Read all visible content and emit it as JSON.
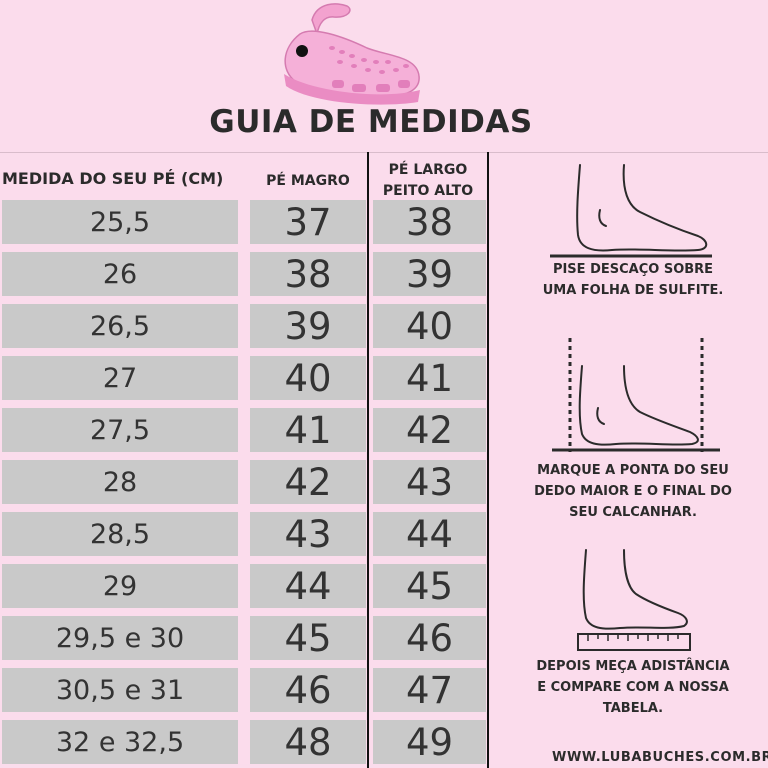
{
  "title": "GUIA DE MEDIDAS",
  "headers": {
    "foot_size": "MEDIDA DO SEU PÉ (CM)",
    "narrow": "PÉ MAGRO",
    "wide_line1": "PÉ LARGO",
    "wide_line2": "PEITO ALTO"
  },
  "rows": [
    {
      "cm": "25,5",
      "narrow": "37",
      "wide": "38"
    },
    {
      "cm": "26",
      "narrow": "38",
      "wide": "39"
    },
    {
      "cm": "26,5",
      "narrow": "39",
      "wide": "40"
    },
    {
      "cm": "27",
      "narrow": "40",
      "wide": "41"
    },
    {
      "cm": "27,5",
      "narrow": "41",
      "wide": "42"
    },
    {
      "cm": "28",
      "narrow": "42",
      "wide": "43"
    },
    {
      "cm": "28,5",
      "narrow": "43",
      "wide": "44"
    },
    {
      "cm": "29",
      "narrow": "44",
      "wide": "45"
    },
    {
      "cm": "29,5 e 30",
      "narrow": "45",
      "wide": "46"
    },
    {
      "cm": "30,5 e 31",
      "narrow": "46",
      "wide": "47"
    },
    {
      "cm": "32 e 32,5",
      "narrow": "48",
      "wide": "49"
    }
  ],
  "steps": [
    {
      "line1": "PISE DESCAÇO SOBRE",
      "line2": "UMA FOLHA DE SULFITE.",
      "line3": ""
    },
    {
      "line1": "MARQUE A PONTA DO SEU",
      "line2": "DEDO MAIOR E O FINAL DO",
      "line3": "SEU CALCANHAR."
    },
    {
      "line1": "DEPOIS MEÇA ADISTÂNCIA",
      "line2": "E COMPARE COM A NOSSA",
      "line3": "TABELA."
    }
  ],
  "website": "WWW.LUBABUCHES.COM.BR",
  "colors": {
    "background": "#fbdcec",
    "cell": "#c9c9c9",
    "clog": "#f4a6d2"
  }
}
